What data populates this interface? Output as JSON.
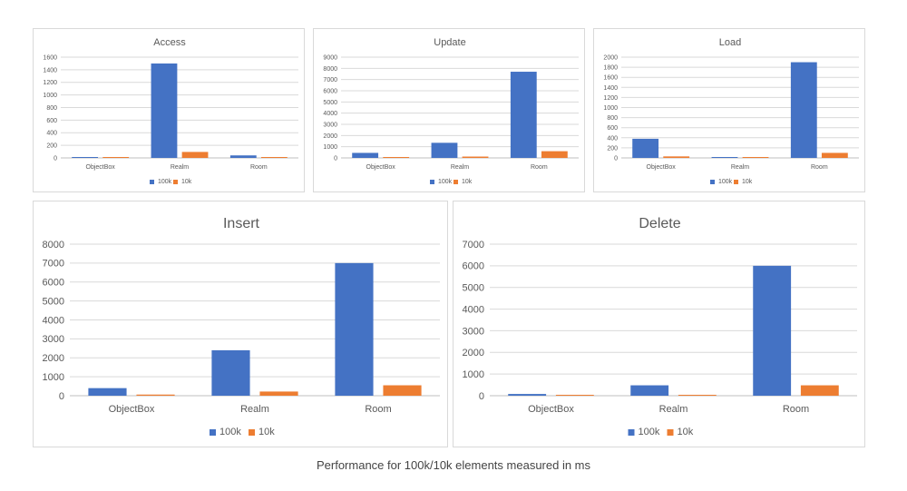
{
  "caption": "Performance for 100k/10k elements measured in ms",
  "colors": {
    "100k": "#4472C4",
    "10k": "#ED7D31",
    "grid": "#d9d9d9",
    "axis": "#bfbfbf",
    "text": "#595959"
  },
  "chart_data": [
    {
      "type": "bar",
      "title": "Access",
      "categories": [
        "ObjectBox",
        "Realm",
        "Room"
      ],
      "series": [
        {
          "name": "100k",
          "values": [
            10,
            1500,
            40
          ]
        },
        {
          "name": "10k",
          "values": [
            2,
            95,
            4
          ]
        }
      ],
      "ylim": [
        0,
        1600
      ],
      "yticks": [
        0,
        200,
        400,
        600,
        800,
        1000,
        1200,
        1400,
        1600
      ],
      "ytick_labels": [
        "0",
        "200",
        "400",
        "600",
        "800",
        "1000",
        "1200",
        "1400",
        "1600"
      ],
      "grid": true,
      "legend": "bottom"
    },
    {
      "type": "bar",
      "title": "Update",
      "categories": [
        "ObjectBox",
        "Realm",
        "Room"
      ],
      "series": [
        {
          "name": "100k",
          "values": [
            450,
            1350,
            7700
          ]
        },
        {
          "name": "10k",
          "values": [
            50,
            120,
            600
          ]
        }
      ],
      "ylim": [
        0,
        9000
      ],
      "yticks": [
        0,
        1000,
        2000,
        3000,
        4000,
        5000,
        6000,
        7000,
        8000,
        9000
      ],
      "ytick_labels": [
        "0",
        "1000",
        "2000",
        "3000",
        "4000",
        "5000",
        "6000",
        "7000",
        "8000",
        "9000"
      ],
      "grid": true,
      "legend": "bottom"
    },
    {
      "type": "bar",
      "title": "Load",
      "categories": [
        "ObjectBox",
        "Realm",
        "Room"
      ],
      "series": [
        {
          "name": "100k",
          "values": [
            380,
            10,
            1900
          ]
        },
        {
          "name": "10k",
          "values": [
            30,
            3,
            100
          ]
        }
      ],
      "ylim": [
        0,
        2000
      ],
      "yticks": [
        0,
        200,
        400,
        600,
        800,
        1000,
        1200,
        1400,
        1600,
        1800,
        2000
      ],
      "ytick_labels": [
        "0",
        "200",
        "400",
        "600",
        "800",
        "1000",
        "1200",
        "1400",
        "1600",
        "1800",
        "2000"
      ],
      "grid": true,
      "legend": "bottom"
    },
    {
      "type": "bar",
      "title": "Insert",
      "categories": [
        "ObjectBox",
        "Realm",
        "Room"
      ],
      "series": [
        {
          "name": "100k",
          "values": [
            400,
            2400,
            7000
          ]
        },
        {
          "name": "10k",
          "values": [
            60,
            220,
            550
          ]
        }
      ],
      "ylim": [
        0,
        8000
      ],
      "yticks": [
        0,
        1000,
        2000,
        3000,
        4000,
        5000,
        6000,
        7000,
        8000
      ],
      "ytick_labels": [
        "0",
        "1000",
        "2000",
        "3000",
        "4000",
        "5000",
        "6000",
        "7000",
        "8000"
      ],
      "grid": true,
      "legend": "bottom"
    },
    {
      "type": "bar",
      "title": "Delete",
      "categories": [
        "ObjectBox",
        "Realm",
        "Room"
      ],
      "series": [
        {
          "name": "100k",
          "values": [
            80,
            480,
            6000
          ]
        },
        {
          "name": "10k",
          "values": [
            40,
            40,
            480
          ]
        }
      ],
      "ylim": [
        0,
        7000
      ],
      "yticks": [
        0,
        1000,
        2000,
        3000,
        4000,
        5000,
        6000,
        7000
      ],
      "ytick_labels": [
        "0",
        "1000",
        "2000",
        "3000",
        "4000",
        "5000",
        "6000",
        "7000"
      ],
      "grid": true,
      "legend": "bottom"
    }
  ]
}
